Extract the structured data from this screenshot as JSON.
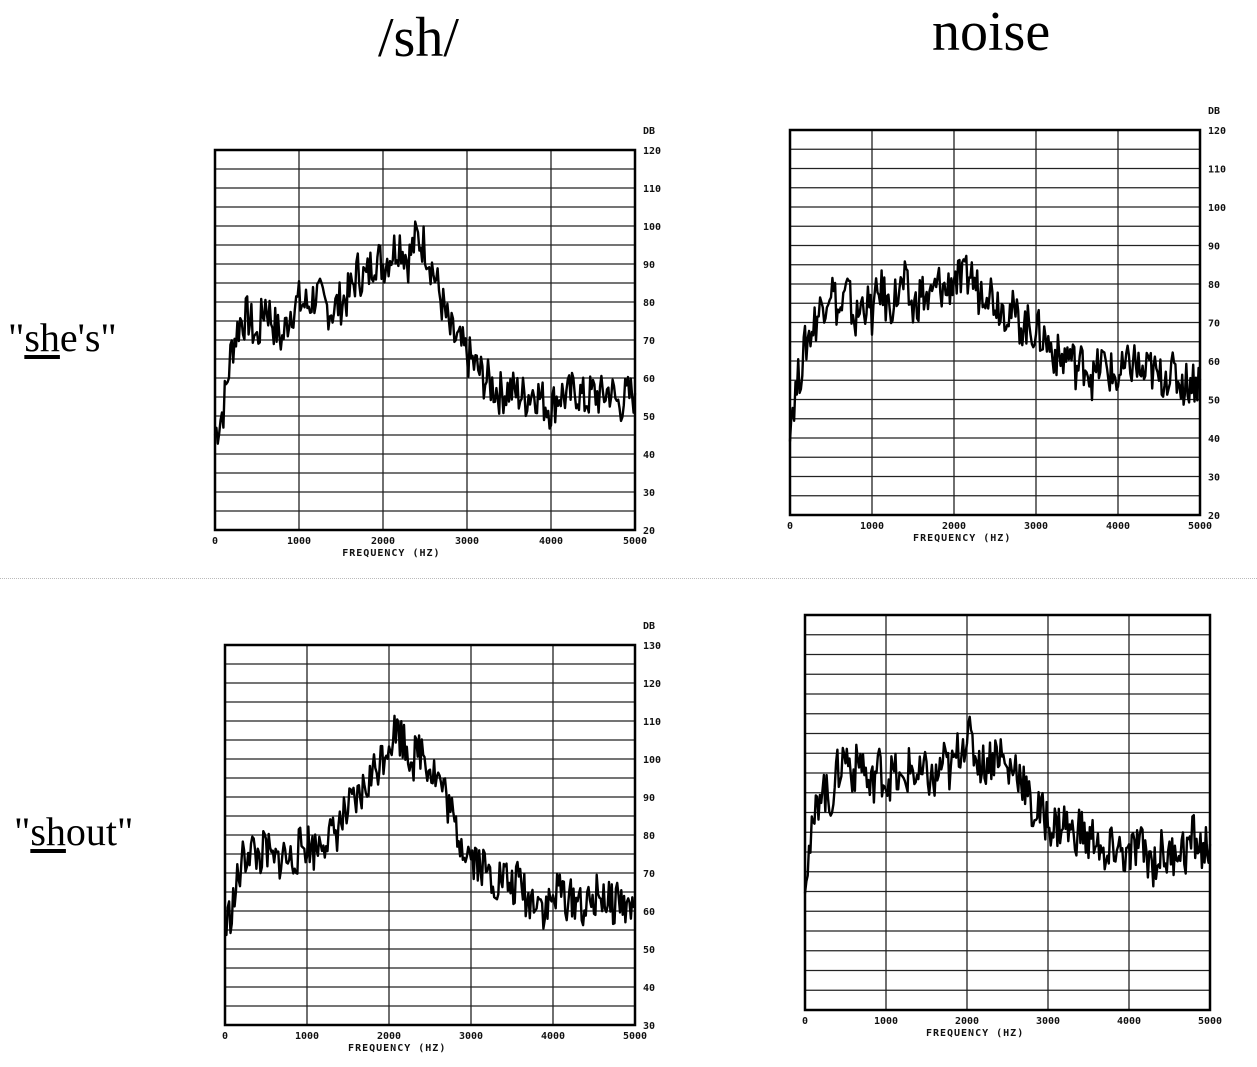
{
  "column_titles": [
    "/sh/",
    "noise"
  ],
  "row_labels": [
    {
      "pre": "\"",
      "underlined": "sh",
      "post": "e's\""
    },
    {
      "pre": "\"",
      "underlined": "sh",
      "post": "out\""
    }
  ],
  "chart_data": [
    {
      "type": "line",
      "panel": "sh-shes",
      "xlabel": "FREQUENCY (HZ)",
      "xlim": [
        0,
        5000
      ],
      "ylim": [
        20,
        120
      ],
      "x_ticks": [
        "0",
        "1000",
        "2000",
        "3000",
        "4000",
        "5000"
      ],
      "y_ticks": [
        "20",
        "30",
        "40",
        "50",
        "60",
        "70",
        "80",
        "90",
        "100",
        "110",
        "120"
      ],
      "y_unit": "DB",
      "grid": true,
      "series": [
        {
          "x": [
            0,
            100,
            200,
            300,
            400,
            500,
            600,
            700,
            800,
            900,
            1000,
            1100,
            1200,
            1300,
            1400,
            1500,
            1600,
            1700,
            1800,
            1900,
            2000,
            2100,
            2200,
            2300,
            2400,
            2500,
            2600,
            2700,
            2800,
            2900,
            3000,
            3100,
            3200,
            3300,
            3400,
            3500,
            3600,
            3700,
            3800,
            3900,
            4000,
            4100,
            4200,
            4300,
            4400,
            4500,
            4600,
            4700,
            4800,
            4900,
            5000
          ],
          "y": [
            45,
            52,
            68,
            75,
            76,
            70,
            80,
            74,
            70,
            78,
            80,
            79,
            82,
            79,
            78,
            80,
            82,
            88,
            86,
            92,
            90,
            93,
            96,
            91,
            97,
            95,
            88,
            80,
            72,
            69,
            66,
            63,
            60,
            58,
            56,
            57,
            56,
            55,
            57,
            54,
            52,
            56,
            55,
            57,
            54,
            56,
            55,
            57,
            53,
            55,
            56
          ]
        }
      ]
    },
    {
      "type": "line",
      "panel": "noise-shes",
      "xlabel": "FREQUENCY (HZ)",
      "xlim": [
        0,
        5000
      ],
      "ylim": [
        20,
        120
      ],
      "x_ticks": [
        "0",
        "1000",
        "2000",
        "3000",
        "4000",
        "5000"
      ],
      "y_ticks": [
        "20",
        "30",
        "40",
        "50",
        "60",
        "70",
        "80",
        "90",
        "100",
        "110",
        "120"
      ],
      "y_unit": "DB",
      "grid": true,
      "series": [
        {
          "x": [
            0,
            100,
            200,
            300,
            400,
            500,
            600,
            700,
            800,
            900,
            1000,
            1100,
            1200,
            1300,
            1400,
            1500,
            1600,
            1700,
            1800,
            1900,
            2000,
            2100,
            2200,
            2300,
            2400,
            2500,
            2600,
            2700,
            2800,
            2900,
            3000,
            3100,
            3200,
            3300,
            3400,
            3500,
            3600,
            3700,
            3800,
            3900,
            4000,
            4100,
            4200,
            4300,
            4400,
            4500,
            4600,
            4700,
            4800,
            4900,
            5000
          ],
          "y": [
            45,
            55,
            65,
            70,
            75,
            80,
            72,
            78,
            70,
            76,
            72,
            79,
            74,
            77,
            80,
            73,
            78,
            75,
            80,
            78,
            82,
            80,
            83,
            78,
            80,
            76,
            74,
            73,
            70,
            69,
            68,
            66,
            63,
            60,
            62,
            58,
            60,
            55,
            60,
            57,
            55,
            58,
            60,
            56,
            58,
            55,
            57,
            56,
            54,
            55,
            55
          ]
        }
      ]
    },
    {
      "type": "line",
      "panel": "sh-shout",
      "xlabel": "FREQUENCY (HZ)",
      "xlim": [
        0,
        5000
      ],
      "ylim": [
        30,
        130
      ],
      "x_ticks": [
        "0",
        "1000",
        "2000",
        "3000",
        "4000",
        "5000"
      ],
      "y_ticks": [
        "30",
        "40",
        "50",
        "60",
        "70",
        "80",
        "90",
        "100",
        "110",
        "120",
        "130"
      ],
      "y_unit": "DB",
      "grid": true,
      "series": [
        {
          "x": [
            0,
            100,
            200,
            300,
            400,
            500,
            600,
            700,
            800,
            900,
            1000,
            1100,
            1200,
            1300,
            1400,
            1500,
            1600,
            1700,
            1800,
            1900,
            2000,
            2100,
            2200,
            2300,
            2400,
            2500,
            2600,
            2700,
            2800,
            2900,
            3000,
            3100,
            3200,
            3300,
            3400,
            3500,
            3600,
            3700,
            3800,
            3900,
            4000,
            4100,
            4200,
            4300,
            4400,
            4500,
            4600,
            4700,
            4800,
            4900,
            5000
          ],
          "y": [
            55,
            62,
            72,
            77,
            74,
            76,
            72,
            75,
            73,
            76,
            78,
            76,
            80,
            79,
            83,
            86,
            88,
            92,
            96,
            100,
            105,
            108,
            104,
            100,
            103,
            98,
            95,
            90,
            82,
            78,
            75,
            73,
            70,
            68,
            69,
            66,
            68,
            62,
            65,
            60,
            63,
            66,
            62,
            64,
            60,
            63,
            65,
            61,
            64,
            60,
            62
          ]
        }
      ]
    },
    {
      "type": "line",
      "panel": "noise-shout",
      "xlabel": "FREQUENCY (HZ)",
      "xlim": [
        0,
        5000
      ],
      "ylim": [
        20,
        120
      ],
      "x_ticks": [
        "0",
        "1000",
        "2000",
        "3000",
        "4000",
        "5000"
      ],
      "y_ticks": [],
      "grid": true,
      "series": [
        {
          "x": [
            0,
            100,
            200,
            300,
            400,
            500,
            600,
            700,
            800,
            900,
            1000,
            1100,
            1200,
            1300,
            1400,
            1500,
            1600,
            1700,
            1800,
            1900,
            2000,
            2100,
            2200,
            2300,
            2400,
            2500,
            2600,
            2700,
            2800,
            2900,
            3000,
            3100,
            3200,
            3300,
            3400,
            3500,
            3600,
            3700,
            3800,
            3900,
            4000,
            4100,
            4200,
            4300,
            4400,
            4500,
            4600,
            4700,
            4800,
            4900,
            5000
          ],
          "y": [
            55,
            65,
            78,
            72,
            80,
            85,
            80,
            84,
            75,
            82,
            78,
            80,
            76,
            82,
            78,
            80,
            77,
            83,
            80,
            86,
            90,
            85,
            82,
            84,
            86,
            80,
            82,
            78,
            70,
            70,
            68,
            66,
            68,
            64,
            66,
            62,
            65,
            55,
            62,
            60,
            58,
            62,
            60,
            57,
            60,
            58,
            62,
            60,
            64,
            60,
            62
          ]
        }
      ]
    }
  ]
}
